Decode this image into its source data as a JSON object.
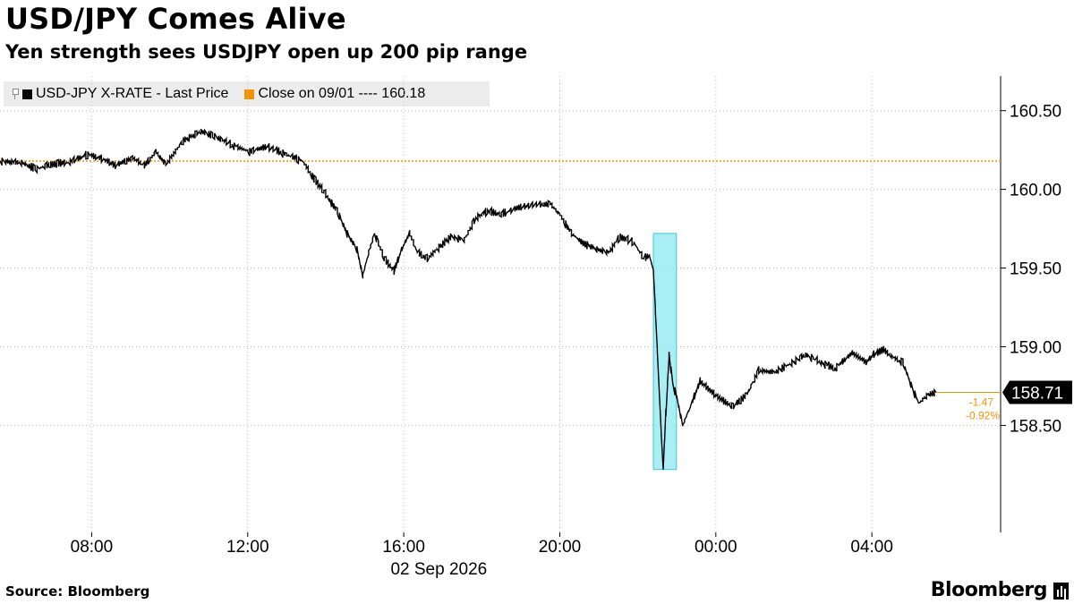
{
  "header": {
    "title": "USD/JPY Comes Alive",
    "subtitle": "Yen strength sees USDJPY open up 200 pip range"
  },
  "legend": {
    "series_label": "USD-JPY X-RATE - Last Price",
    "close_label": "Close on 09/01 ---- 160.18",
    "close_color": "#f39200"
  },
  "footer": {
    "source": "Source: Bloomberg",
    "brand": "Bloomberg"
  },
  "chart_data": {
    "type": "line",
    "title": "USD/JPY Comes Alive",
    "subtitle": "Yen strength sees USDJPY open up 200 pip range",
    "xlabel": "02 Sep 2026",
    "x_unit": "hour of day (02 Sep 2026; values above 24 are 03 Sep)",
    "x_ticks": [
      "08:00",
      "12:00",
      "16:00",
      "20:00",
      "00:00",
      "04:00"
    ],
    "x_tick_values": [
      8,
      12,
      16,
      20,
      24,
      28
    ],
    "xlim": [
      5.65,
      31.3
    ],
    "ylim": [
      157.82,
      160.72
    ],
    "y_ticks": [
      158.5,
      159.0,
      159.5,
      160.0,
      160.5
    ],
    "y_tick_labels": [
      "158.50",
      "159.00",
      "159.50",
      "160.00",
      "160.50"
    ],
    "grid": true,
    "series": [
      {
        "name": "USD-JPY X-RATE - Last Price",
        "color": "#000000",
        "x": [
          5.65,
          6.2,
          6.6,
          6.95,
          7.4,
          7.9,
          8.3,
          8.6,
          9.05,
          9.35,
          9.65,
          9.9,
          10.35,
          10.8,
          11.15,
          11.6,
          12.05,
          12.5,
          13.0,
          13.4,
          13.75,
          14.0,
          14.3,
          14.55,
          14.8,
          14.95,
          15.1,
          15.25,
          15.5,
          15.75,
          15.95,
          16.15,
          16.35,
          16.6,
          16.85,
          17.2,
          17.55,
          17.85,
          18.15,
          18.5,
          18.9,
          19.3,
          19.75,
          20.0,
          20.3,
          20.6,
          20.95,
          21.25,
          21.55,
          21.9,
          22.15,
          22.3,
          22.4,
          22.5,
          22.6,
          22.65,
          22.72,
          22.8,
          22.9,
          23.0,
          23.15,
          23.35,
          23.6,
          23.85,
          24.15,
          24.45,
          24.8,
          25.1,
          25.5,
          25.9,
          26.3,
          26.7,
          27.05,
          27.5,
          27.85,
          28.05,
          28.3,
          28.55,
          28.8,
          29.0,
          29.2,
          29.45,
          29.65
        ],
        "values": [
          160.18,
          160.17,
          160.13,
          160.16,
          160.17,
          160.22,
          160.19,
          160.15,
          160.2,
          160.15,
          160.24,
          160.16,
          160.31,
          160.37,
          160.34,
          160.28,
          160.24,
          160.27,
          160.22,
          160.18,
          160.05,
          159.97,
          159.86,
          159.72,
          159.62,
          159.45,
          159.6,
          159.72,
          159.56,
          159.48,
          159.62,
          159.72,
          159.6,
          159.56,
          159.62,
          159.7,
          159.68,
          159.82,
          159.86,
          159.84,
          159.88,
          159.9,
          159.91,
          159.84,
          159.72,
          159.66,
          159.62,
          159.6,
          159.7,
          159.66,
          159.56,
          159.58,
          159.48,
          158.98,
          158.45,
          158.22,
          158.58,
          158.95,
          158.76,
          158.68,
          158.5,
          158.62,
          158.78,
          158.72,
          158.66,
          158.62,
          158.7,
          158.85,
          158.84,
          158.89,
          158.95,
          158.9,
          158.86,
          158.96,
          158.9,
          158.95,
          158.98,
          158.93,
          158.9,
          158.76,
          158.64,
          158.7,
          158.71
        ]
      },
      {
        "name": "Close on 09/01",
        "color": "#f39200",
        "style": "dotted",
        "values": [
          160.18
        ]
      }
    ],
    "last_value": {
      "label": "158.71",
      "change": "-1.47",
      "change_pct": "-0.92%"
    },
    "highlight": {
      "x_start": 22.4,
      "x_end": 22.99,
      "y_start": 158.22,
      "y_end": 159.72,
      "color": "#8ee8f2"
    }
  }
}
